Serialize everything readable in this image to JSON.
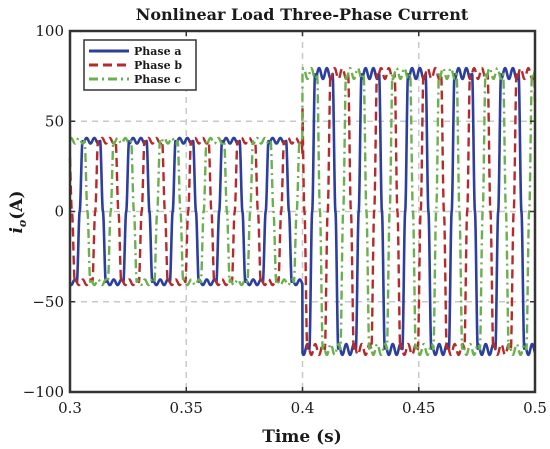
{
  "chart_data": {
    "type": "line",
    "title": "Nonlinear Load Three-Phase Current",
    "xlabel": "Time (s)",
    "ylabel": "i_o(A)",
    "xlim": [
      0.3,
      0.5
    ],
    "ylim": [
      -100,
      100
    ],
    "xticks": [
      0.3,
      0.35,
      0.4,
      0.45,
      0.5
    ],
    "xtick_labels": [
      "0.3",
      "0.35",
      "0.4",
      "0.45",
      "0.5"
    ],
    "yticks": [
      -100,
      -50,
      0,
      50,
      100
    ],
    "ytick_labels": [
      "−100",
      "−50",
      "0",
      "50",
      "100"
    ],
    "grid": true,
    "legend_position": "top-left",
    "frequency_hz": 50,
    "step_time": 0.4,
    "series": [
      {
        "name": "Phase a",
        "color": "#2c3e9e",
        "dash": "solid",
        "phase_deg": 0,
        "amplitude_before": 40,
        "amplitude_after": 78
      },
      {
        "name": "Phase b",
        "color": "#b52a2a",
        "dash": "dashed",
        "phase_deg": -120,
        "amplitude_before": 40,
        "amplitude_after": 78
      },
      {
        "name": "Phase c",
        "color": "#6ab04c",
        "dash": "dashdot",
        "phase_deg": 120,
        "amplitude_before": 40,
        "amplitude_after": 78
      }
    ]
  }
}
